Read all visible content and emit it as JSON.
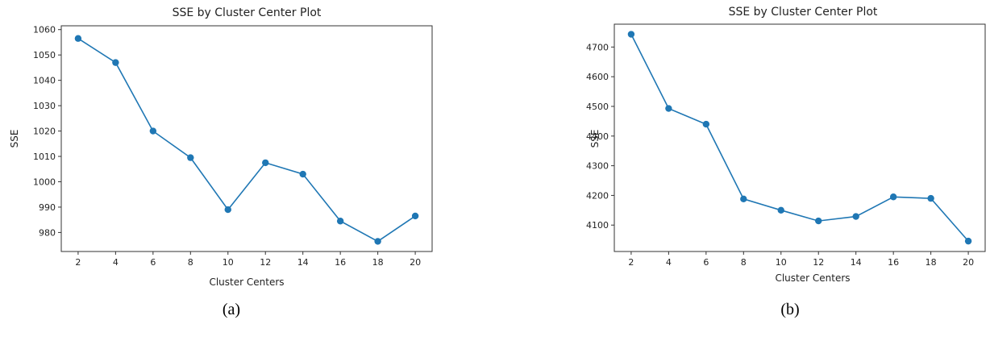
{
  "chart_data": [
    {
      "type": "line",
      "title": "SSE by Cluster Center Plot",
      "xlabel": "Cluster Centers",
      "ylabel": "SSE",
      "caption": "(a)",
      "x": [
        2,
        4,
        6,
        8,
        10,
        12,
        14,
        16,
        18,
        20
      ],
      "y": [
        1056.5,
        1047,
        1020,
        1009.5,
        989,
        1007.5,
        1003,
        984.5,
        976.5,
        986.5
      ],
      "xticks": [
        2,
        4,
        6,
        8,
        10,
        12,
        14,
        16,
        18,
        20
      ],
      "yticks": [
        980,
        990,
        1000,
        1010,
        1020,
        1030,
        1040,
        1050,
        1060
      ],
      "xlim": [
        1.1,
        20.9
      ],
      "ylim": [
        972.5,
        1061.5
      ],
      "marker": "circle",
      "color": "#1f77b4",
      "grid": false
    },
    {
      "type": "line",
      "title": "SSE by Cluster Center Plot",
      "xlabel": "Cluster Centers",
      "ylabel": "SSE",
      "caption": "(b)",
      "x": [
        2,
        4,
        6,
        8,
        10,
        12,
        14,
        16,
        18,
        20
      ],
      "y": [
        4743,
        4493,
        4440,
        4188,
        4150,
        4114,
        4129,
        4195,
        4190,
        4046
      ],
      "xticks": [
        2,
        4,
        6,
        8,
        10,
        12,
        14,
        16,
        18,
        20
      ],
      "yticks": [
        4100,
        4200,
        4300,
        4400,
        4500,
        4600,
        4700
      ],
      "xlim": [
        1.1,
        20.9
      ],
      "ylim": [
        4011,
        4777
      ],
      "marker": "circle",
      "color": "#1f77b4",
      "grid": false
    }
  ]
}
